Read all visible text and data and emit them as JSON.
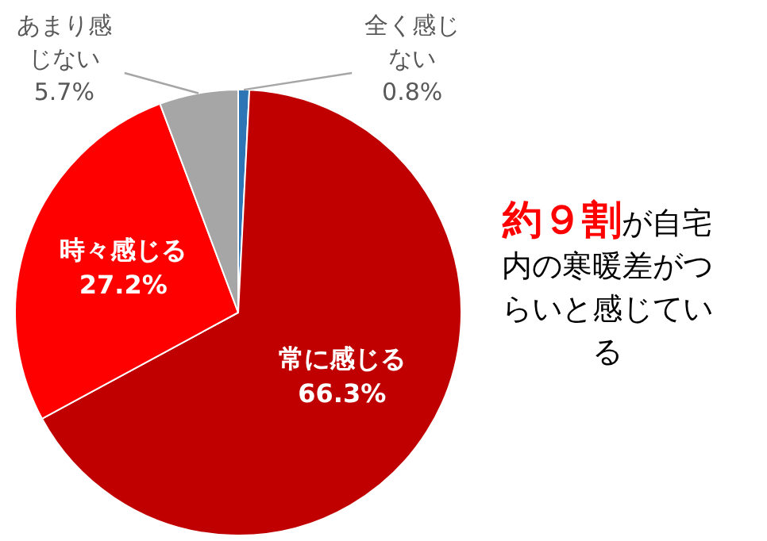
{
  "chart_data": {
    "type": "pie",
    "categories": [
      "全く感じない",
      "常に感じる",
      "時々感じる",
      "あまり感じない"
    ],
    "values": [
      0.8,
      66.3,
      27.2,
      5.7
    ],
    "colors": [
      "#2e75b6",
      "#c00000",
      "#ff0000",
      "#a6a6a6"
    ],
    "value_labels": [
      "0.8%",
      "66.3%",
      "27.2%",
      "5.7%"
    ],
    "annotations": [
      "約９割",
      "が自宅内の寒暖差がつらいと感じている"
    ],
    "legend": false
  }
}
